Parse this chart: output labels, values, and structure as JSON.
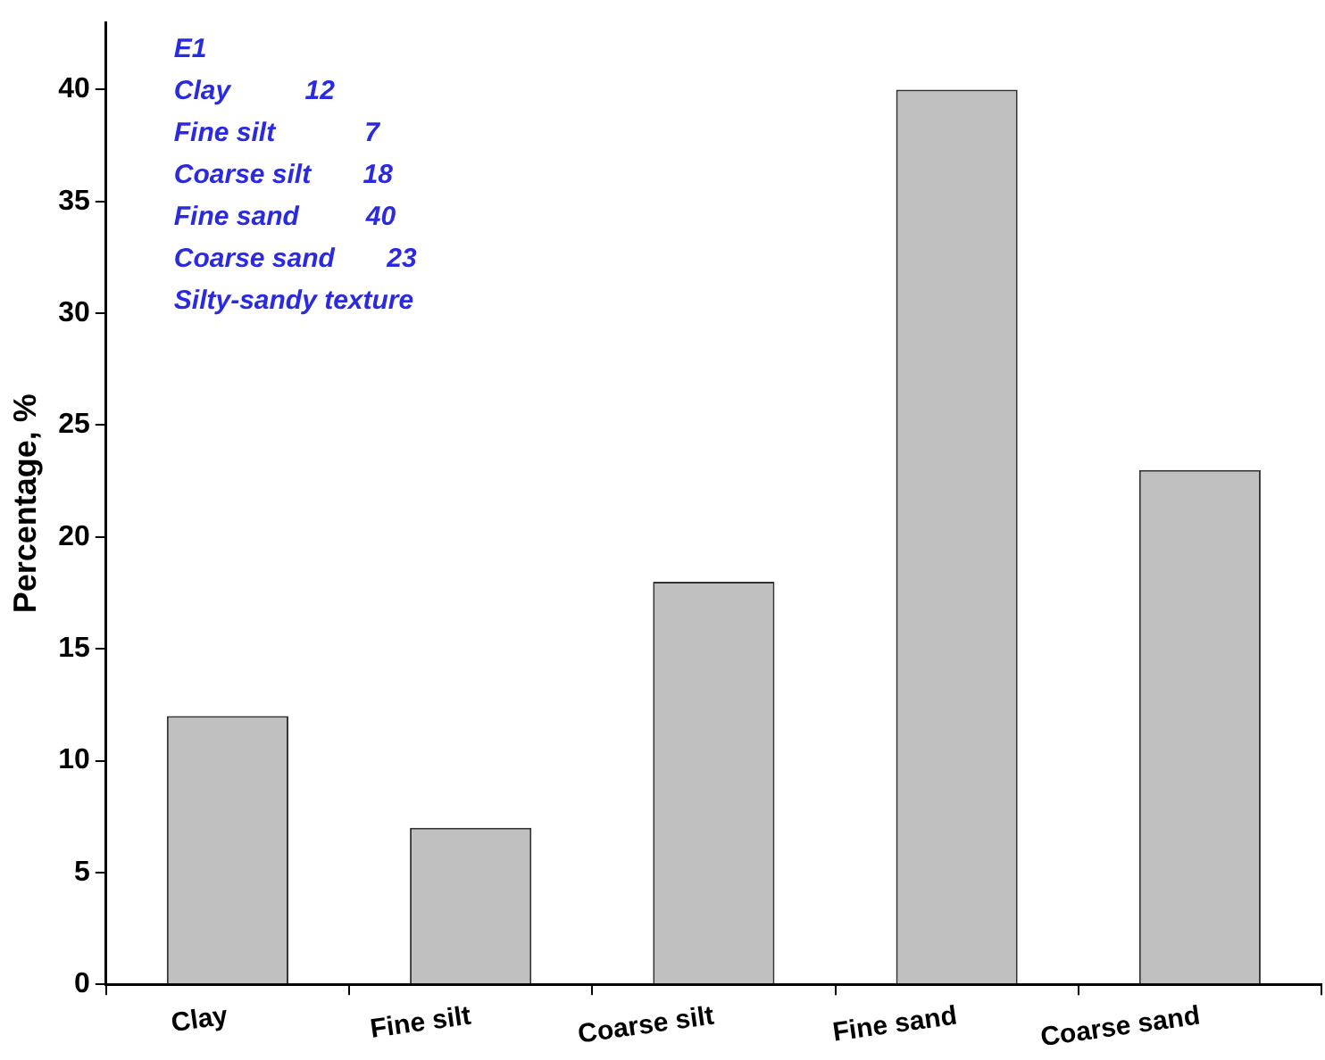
{
  "chart_data": {
    "type": "bar",
    "ylabel": "Percentage, %",
    "categories": [
      "Clay",
      "Fine silt",
      "Coarse silt",
      "Fine sand",
      "Coarse sand"
    ],
    "values": [
      12,
      7,
      18,
      40,
      23
    ],
    "color": "#c0c0c0",
    "ylim": [
      0,
      43
    ],
    "yticks": [
      0,
      5,
      10,
      15,
      20,
      25,
      30,
      35,
      40
    ],
    "grid": false,
    "legend": false,
    "annotations": [
      "E1",
      "Clay          12",
      "Fine silt            7",
      "Coarse silt       18",
      "Fine sand         40",
      "Coarse sand       23",
      "Silty-sandy texture"
    ]
  }
}
